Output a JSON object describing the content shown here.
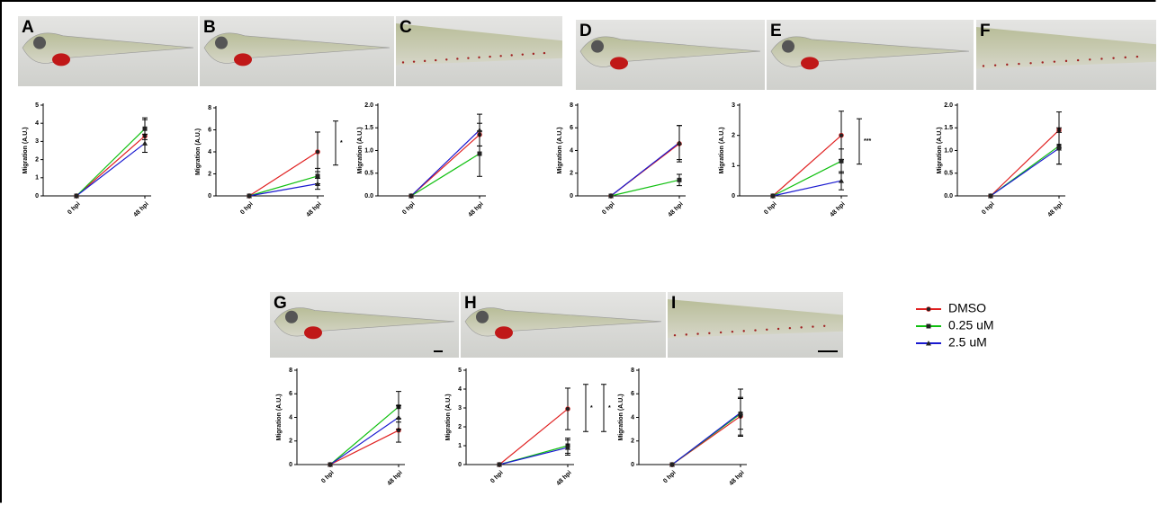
{
  "legend": {
    "entries": [
      {
        "name": "DMSO",
        "color": "#e02020"
      },
      {
        "name": "0.25 uM",
        "color": "#10c010"
      },
      {
        "name": "2.5 uM",
        "color": "#1a1ad0"
      }
    ]
  },
  "chart_data": [
    {
      "type": "line",
      "panel": "A",
      "y_label": "Migration (A.U.)",
      "categories": [
        "0 hpi",
        "48 hpi"
      ],
      "ylim": [
        0,
        5
      ],
      "yticks": [
        0,
        1,
        2,
        3,
        4,
        5
      ],
      "series": [
        {
          "color": "#e02020",
          "values": [
            0,
            3.3
          ],
          "errors": [
            null,
            0.9
          ]
        },
        {
          "color": "#10c010",
          "values": [
            0,
            3.7
          ],
          "errors": [
            null,
            0.6
          ]
        },
        {
          "color": "#1a1ad0",
          "values": [
            0,
            2.9
          ],
          "errors": [
            null,
            0.5
          ]
        }
      ],
      "annotations": []
    },
    {
      "type": "line",
      "panel": "B",
      "y_label": "Migration (A.U.)",
      "categories": [
        "0 hpi",
        "48 hpi"
      ],
      "ylim": [
        0,
        8
      ],
      "yticks": [
        0,
        2,
        4,
        6,
        8
      ],
      "series": [
        {
          "color": "#e02020",
          "values": [
            0,
            4.0
          ],
          "errors": [
            null,
            1.8
          ]
        },
        {
          "color": "#10c010",
          "values": [
            0,
            1.8
          ],
          "errors": [
            null,
            0.7
          ]
        },
        {
          "color": "#1a1ad0",
          "values": [
            0,
            1.1
          ],
          "errors": [
            null,
            0.5
          ]
        }
      ],
      "annotations": [
        "*"
      ]
    },
    {
      "type": "line",
      "panel": "C",
      "y_label": "Migration (A.U.)",
      "categories": [
        "0 hpi",
        "48 hpi"
      ],
      "ylim": [
        0,
        2
      ],
      "yticks": [
        {
          "value": 0,
          "label": "0.0"
        },
        {
          "value": 0.5,
          "label": "0.5"
        },
        {
          "value": 1,
          "label": "1.0"
        },
        {
          "value": 1.5,
          "label": "1.5"
        },
        {
          "value": 2,
          "label": "2.0"
        }
      ],
      "series": [
        {
          "color": "#e02020",
          "values": [
            0,
            1.35
          ],
          "errors": [
            null,
            0.25
          ]
        },
        {
          "color": "#10c010",
          "values": [
            0,
            0.93
          ],
          "errors": [
            null,
            0.5
          ]
        },
        {
          "color": "#1a1ad0",
          "values": [
            0,
            1.45
          ],
          "errors": [
            null,
            0.35
          ]
        }
      ],
      "annotations": []
    },
    {
      "type": "line",
      "panel": "D",
      "y_label": "Migration (A.U.)",
      "categories": [
        "0 hpi",
        "48 hpi"
      ],
      "ylim": [
        0,
        8
      ],
      "yticks": [
        0,
        2,
        4,
        6,
        8
      ],
      "series": [
        {
          "color": "#e02020",
          "values": [
            0,
            4.6
          ],
          "errors": [
            null,
            1.6
          ]
        },
        {
          "color": "#10c010",
          "values": [
            0,
            1.4
          ],
          "errors": [
            null,
            0.5
          ]
        },
        {
          "color": "#1a1ad0",
          "values": [
            0,
            4.7
          ],
          "errors": [
            null,
            1.5
          ]
        }
      ],
      "annotations": []
    },
    {
      "type": "line",
      "panel": "E",
      "y_label": "Migration (A.U.)",
      "categories": [
        "0 hpi",
        "48 hpi"
      ],
      "ylim": [
        0,
        3
      ],
      "yticks": [
        0,
        1,
        2,
        3
      ],
      "series": [
        {
          "color": "#e02020",
          "values": [
            0,
            2.0
          ],
          "errors": [
            null,
            0.8
          ]
        },
        {
          "color": "#10c010",
          "values": [
            0,
            1.15
          ],
          "errors": [
            null,
            0.4
          ]
        },
        {
          "color": "#1a1ad0",
          "values": [
            0,
            0.5
          ],
          "errors": [
            null,
            0.3
          ]
        }
      ],
      "annotations": [
        "***"
      ]
    },
    {
      "type": "line",
      "panel": "F",
      "y_label": "Migration (A.U.)",
      "categories": [
        "0 hpi",
        "48 hpi"
      ],
      "ylim": [
        0,
        2
      ],
      "yticks": [
        {
          "value": 0,
          "label": "0.0"
        },
        {
          "value": 0.5,
          "label": "0.5"
        },
        {
          "value": 1,
          "label": "1.0"
        },
        {
          "value": 1.5,
          "label": "1.5"
        },
        {
          "value": 2,
          "label": "2.0"
        }
      ],
      "series": [
        {
          "color": "#e02020",
          "values": [
            0,
            1.45
          ],
          "errors": [
            null,
            0.4
          ]
        },
        {
          "color": "#10c010",
          "values": [
            0,
            1.1
          ],
          "errors": [
            null,
            0.4
          ]
        },
        {
          "color": "#1a1ad0",
          "values": [
            0,
            1.05
          ],
          "errors": [
            null,
            0.35
          ]
        }
      ],
      "annotations": []
    },
    {
      "type": "line",
      "panel": "G",
      "y_label": "Migration (A.U.)",
      "categories": [
        "0 hpi",
        "48 hpi"
      ],
      "ylim": [
        0,
        8
      ],
      "yticks": [
        0,
        2,
        4,
        6,
        8
      ],
      "series": [
        {
          "color": "#e02020",
          "values": [
            0,
            2.9
          ],
          "errors": [
            null,
            1.0
          ]
        },
        {
          "color": "#10c010",
          "values": [
            0,
            4.9
          ],
          "errors": [
            null,
            1.3
          ]
        },
        {
          "color": "#1a1ad0",
          "values": [
            0,
            4.0
          ],
          "errors": [
            null,
            1.0
          ]
        }
      ],
      "annotations": []
    },
    {
      "type": "line",
      "panel": "H",
      "y_label": "Migration (A.U.)",
      "categories": [
        "0 hpi",
        "48 hpi"
      ],
      "ylim": [
        0,
        5
      ],
      "yticks": [
        0,
        1,
        2,
        3,
        4,
        5
      ],
      "series": [
        {
          "color": "#e02020",
          "values": [
            0,
            2.95
          ],
          "errors": [
            null,
            1.1
          ]
        },
        {
          "color": "#10c010",
          "values": [
            0,
            1.0
          ],
          "errors": [
            null,
            0.4
          ]
        },
        {
          "color": "#1a1ad0",
          "values": [
            0,
            0.9
          ],
          "errors": [
            null,
            0.4
          ]
        }
      ],
      "annotations": [
        "*",
        "*"
      ]
    },
    {
      "type": "line",
      "panel": "I",
      "y_label": "Migration (A.U.)",
      "categories": [
        "0 hpi",
        "48 hpi"
      ],
      "ylim": [
        0,
        8
      ],
      "yticks": [
        0,
        2,
        4,
        6,
        8
      ],
      "series": [
        {
          "color": "#e02020",
          "values": [
            0,
            4.1
          ],
          "errors": [
            null,
            1.6
          ]
        },
        {
          "color": "#10c010",
          "values": [
            0,
            4.3
          ],
          "errors": [
            null,
            1.3
          ]
        },
        {
          "color": "#1a1ad0",
          "values": [
            0,
            4.4
          ],
          "errors": [
            null,
            2.0
          ]
        }
      ],
      "annotations": []
    }
  ]
}
